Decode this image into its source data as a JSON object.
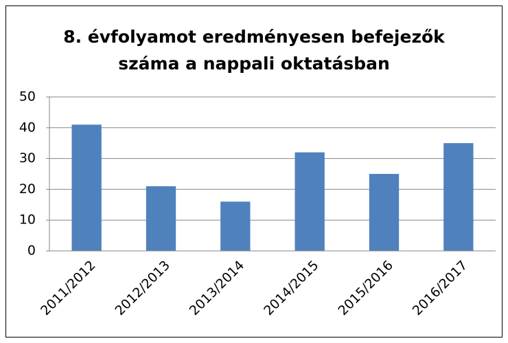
{
  "chart_data": {
    "type": "bar",
    "title": [
      "8. évfolyamot eredményesen befejezők",
      "száma  a nappali oktatásban"
    ],
    "categories": [
      "2011/2012",
      "2012/2013",
      "2013/2014",
      "2014/2015",
      "2015/2016",
      "2016/2017"
    ],
    "values": [
      41,
      21,
      16,
      32,
      25,
      35
    ],
    "color": "#4f81bd",
    "ylim": [
      0,
      50
    ],
    "yticks": [
      0,
      10,
      20,
      30,
      40,
      50
    ],
    "grid": true
  }
}
